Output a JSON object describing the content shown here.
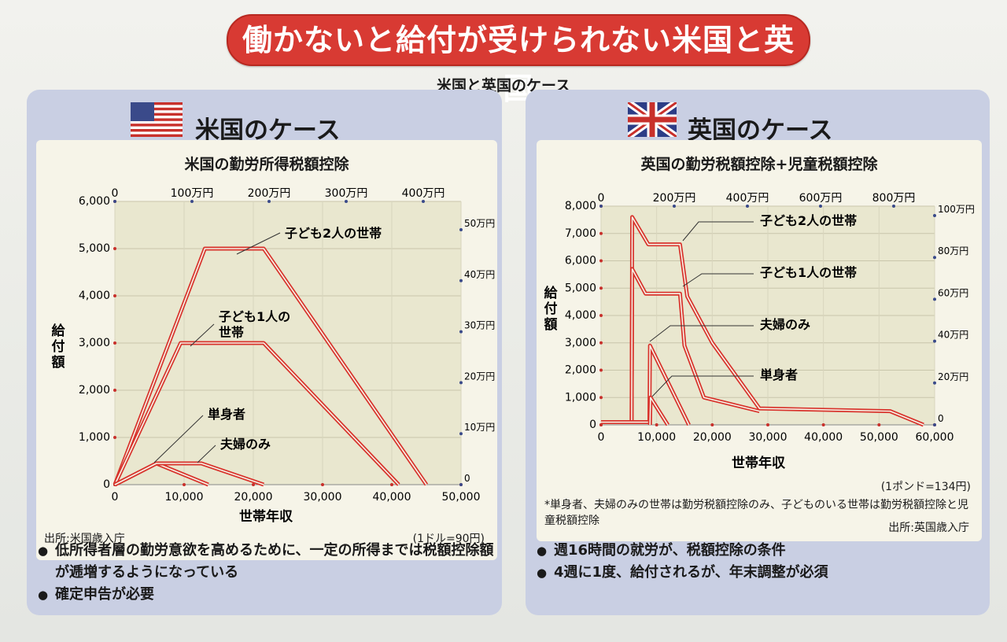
{
  "banner": "働かないと給付が受けられない米国と英国",
  "subtitle": "米国と英国のケース",
  "us": {
    "panel_title": "米国のケース",
    "source": "出所:米国歳入庁",
    "rate": "(1ドル=90円)",
    "bullets": [
      "低所得者層の勤労意欲を高めるために、一定の所得までは税額控除額が逓増するようになっている",
      "確定申告が必要"
    ]
  },
  "uk": {
    "panel_title": "英国のケース",
    "rate": "(1ポンド=134円)",
    "note": "*単身者、夫婦のみの世帯は勤労税額控除のみ、子どものいる世帯は勤労税額控除と児童税額控除",
    "source": "出所:英国歳入庁",
    "bullets": [
      "週16時間の就労が、税額控除の条件",
      "4週に1度、給付されるが、年末調整が必須"
    ]
  },
  "chart_data": [
    {
      "type": "line",
      "title": "米国の勤労所得税額控除",
      "xlabel": "世帯年収",
      "ylabel": "給付額",
      "x_unit": "ドル",
      "y_unit": "ドル",
      "xlim": [
        0,
        50000
      ],
      "ylim": [
        0,
        6000
      ],
      "x_ticks": [
        "0",
        "10,000",
        "20,000",
        "30,000",
        "40,000",
        "50,000"
      ],
      "y_ticks": [
        "0",
        "1,000",
        "2,000",
        "3,000",
        "4,000",
        "5,000",
        "6,000"
      ],
      "top_ticks": [
        "0",
        "100万円",
        "200万円",
        "300万円",
        "400万円"
      ],
      "right_ticks": [
        "0",
        "10万円",
        "20万円",
        "30万円",
        "40万円",
        "50万円"
      ],
      "grid": true,
      "series": [
        {
          "name": "子ども2人の世帯",
          "x": [
            0,
            13000,
            21500,
            45000
          ],
          "y": [
            0,
            5000,
            5000,
            0
          ]
        },
        {
          "name": "子ども1人の世帯",
          "x": [
            0,
            9500,
            21500,
            41000
          ],
          "y": [
            0,
            3000,
            3000,
            0
          ]
        },
        {
          "name": "単身者",
          "x": [
            0,
            6000,
            13500
          ],
          "y": [
            0,
            450,
            0
          ]
        },
        {
          "name": "夫婦のみ",
          "x": [
            0,
            6000,
            12500,
            21500
          ],
          "y": [
            0,
            450,
            450,
            0
          ]
        }
      ],
      "annotations": [
        "子ども2人の世帯",
        "子ども1人の世帯",
        "単身者",
        "夫婦のみ"
      ]
    },
    {
      "type": "line",
      "title": "英国の勤労税額控除+児童税額控除",
      "xlabel": "世帯年収",
      "ylabel": "給付額",
      "x_unit": "ポンド",
      "y_unit": "ポンド",
      "xlim": [
        0,
        60000
      ],
      "ylim": [
        0,
        8000
      ],
      "x_ticks": [
        "0",
        "10,000",
        "20,000",
        "30,000",
        "40,000",
        "50,000",
        "60,000"
      ],
      "y_ticks": [
        "0",
        "1,000",
        "2,000",
        "3,000",
        "4,000",
        "5,000",
        "6,000",
        "7,000",
        "8,000"
      ],
      "top_ticks": [
        "0",
        "200万円",
        "400万円",
        "600万円",
        "800万円"
      ],
      "right_ticks": [
        "0",
        "20万円",
        "40万円",
        "60万円",
        "80万円",
        "100万円"
      ],
      "grid": true,
      "series": [
        {
          "name": "子ども2人の世帯",
          "x": [
            0,
            5500,
            5600,
            8500,
            14200,
            15500,
            20000,
            28500,
            52000,
            58000
          ],
          "y": [
            100,
            100,
            7600,
            6600,
            6600,
            4700,
            3000,
            600,
            500,
            0
          ]
        },
        {
          "name": "子ども1人の世帯",
          "x": [
            0,
            5500,
            5600,
            8000,
            14200,
            15000,
            18500,
            28500
          ],
          "y": [
            100,
            100,
            5700,
            4800,
            4800,
            2900,
            1000,
            500
          ]
        },
        {
          "name": "夫婦のみ",
          "x": [
            0,
            8700,
            8800,
            15800
          ],
          "y": [
            100,
            100,
            2900,
            0
          ]
        },
        {
          "name": "単身者",
          "x": [
            8800,
            8900,
            12000
          ],
          "y": [
            0,
            1000,
            0
          ]
        }
      ],
      "annotations": [
        "子ども2人の世帯",
        "子ども1人の世帯",
        "夫婦のみ",
        "単身者"
      ]
    }
  ]
}
